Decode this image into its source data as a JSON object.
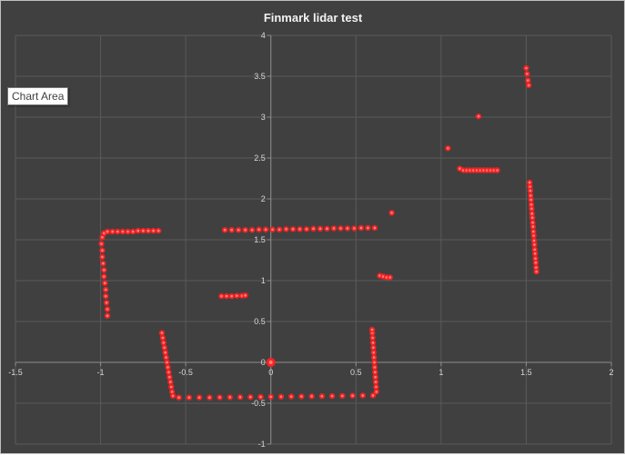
{
  "chart_data": {
    "type": "scatter",
    "title": "Finmark lidar test",
    "xlabel": "",
    "ylabel": "",
    "xlim": [
      -1.5,
      2
    ],
    "ylim": [
      -1,
      4
    ],
    "x_ticks": [
      "-1.5",
      "-1",
      "-0.5",
      "0",
      "0.5",
      "1",
      "1.5",
      "2"
    ],
    "y_ticks": [
      "-1",
      "-0.5",
      "0",
      "0.5",
      "1",
      "1.5",
      "2",
      "2.5",
      "3",
      "3.5",
      "4"
    ],
    "grid": true,
    "legend": "none",
    "series": [
      {
        "color": "#ff2020",
        "points": [
          [
            -0.96,
            0.57
          ],
          [
            -0.96,
            0.65
          ],
          [
            -0.965,
            0.73
          ],
          [
            -0.97,
            0.81
          ],
          [
            -0.97,
            0.89
          ],
          [
            -0.975,
            0.97
          ],
          [
            -0.98,
            1.05
          ],
          [
            -0.98,
            1.13
          ],
          [
            -0.985,
            1.21
          ],
          [
            -0.99,
            1.29
          ],
          [
            -0.99,
            1.37
          ],
          [
            -0.995,
            1.45
          ],
          [
            -0.99,
            1.53
          ],
          [
            -0.98,
            1.58
          ],
          [
            -0.96,
            1.6
          ],
          [
            -0.93,
            1.6
          ],
          [
            -0.9,
            1.6
          ],
          [
            -0.87,
            1.6
          ],
          [
            -0.84,
            1.6
          ],
          [
            -0.81,
            1.6
          ],
          [
            -0.78,
            1.61
          ],
          [
            -0.75,
            1.61
          ],
          [
            -0.72,
            1.61
          ],
          [
            -0.69,
            1.61
          ],
          [
            -0.66,
            1.61
          ],
          [
            -0.64,
            0.36
          ],
          [
            -0.635,
            0.3
          ],
          [
            -0.63,
            0.24
          ],
          [
            -0.625,
            0.18
          ],
          [
            -0.62,
            0.12
          ],
          [
            -0.615,
            0.06
          ],
          [
            -0.61,
            0.0
          ],
          [
            -0.605,
            -0.06
          ],
          [
            -0.6,
            -0.12
          ],
          [
            -0.595,
            -0.18
          ],
          [
            -0.59,
            -0.24
          ],
          [
            -0.585,
            -0.3
          ],
          [
            -0.58,
            -0.36
          ],
          [
            -0.575,
            -0.41
          ],
          [
            -0.54,
            -0.43
          ],
          [
            -0.48,
            -0.43
          ],
          [
            -0.42,
            -0.43
          ],
          [
            -0.36,
            -0.43
          ],
          [
            -0.3,
            -0.428
          ],
          [
            -0.24,
            -0.427
          ],
          [
            -0.18,
            -0.425
          ],
          [
            -0.12,
            -0.424
          ],
          [
            -0.06,
            -0.423
          ],
          [
            0.0,
            -0.421
          ],
          [
            0.06,
            -0.42
          ],
          [
            0.12,
            -0.418
          ],
          [
            0.18,
            -0.417
          ],
          [
            0.24,
            -0.415
          ],
          [
            0.3,
            -0.414
          ],
          [
            0.36,
            -0.412
          ],
          [
            0.42,
            -0.41
          ],
          [
            0.48,
            -0.408
          ],
          [
            0.54,
            -0.406
          ],
          [
            0.6,
            -0.405
          ],
          [
            0.62,
            -0.36
          ],
          [
            0.618,
            -0.3
          ],
          [
            0.616,
            -0.24
          ],
          [
            0.614,
            -0.18
          ],
          [
            0.612,
            -0.12
          ],
          [
            0.61,
            -0.06
          ],
          [
            0.608,
            0.0
          ],
          [
            0.606,
            0.06
          ],
          [
            0.604,
            0.12
          ],
          [
            0.602,
            0.18
          ],
          [
            0.6,
            0.24
          ],
          [
            0.598,
            0.3
          ],
          [
            0.596,
            0.36
          ],
          [
            0.595,
            0.4
          ],
          [
            -0.27,
            1.62
          ],
          [
            -0.23,
            1.62
          ],
          [
            -0.19,
            1.62
          ],
          [
            -0.15,
            1.62
          ],
          [
            -0.11,
            1.62
          ],
          [
            -0.07,
            1.625
          ],
          [
            -0.03,
            1.625
          ],
          [
            0.01,
            1.625
          ],
          [
            0.05,
            1.625
          ],
          [
            0.09,
            1.63
          ],
          [
            0.13,
            1.63
          ],
          [
            0.17,
            1.63
          ],
          [
            0.21,
            1.63
          ],
          [
            0.25,
            1.635
          ],
          [
            0.29,
            1.635
          ],
          [
            0.33,
            1.635
          ],
          [
            0.37,
            1.64
          ],
          [
            0.41,
            1.64
          ],
          [
            0.45,
            1.64
          ],
          [
            0.49,
            1.64
          ],
          [
            0.53,
            1.645
          ],
          [
            0.57,
            1.645
          ],
          [
            0.61,
            1.645
          ],
          [
            -0.29,
            0.81
          ],
          [
            -0.26,
            0.81
          ],
          [
            -0.23,
            0.81
          ],
          [
            -0.2,
            0.815
          ],
          [
            -0.17,
            0.815
          ],
          [
            -0.15,
            0.82
          ],
          [
            0.64,
            1.06
          ],
          [
            0.66,
            1.05
          ],
          [
            0.68,
            1.04
          ],
          [
            0.7,
            1.04
          ],
          [
            0.71,
            1.83
          ],
          [
            1.04,
            2.62
          ],
          [
            1.22,
            3.01
          ],
          [
            1.11,
            2.37
          ],
          [
            1.13,
            2.35
          ],
          [
            1.15,
            2.35
          ],
          [
            1.17,
            2.35
          ],
          [
            1.19,
            2.35
          ],
          [
            1.21,
            2.35
          ],
          [
            1.23,
            2.35
          ],
          [
            1.25,
            2.35
          ],
          [
            1.27,
            2.35
          ],
          [
            1.29,
            2.35
          ],
          [
            1.31,
            2.35
          ],
          [
            1.33,
            2.35
          ],
          [
            1.5,
            3.6
          ],
          [
            1.505,
            3.53
          ],
          [
            1.51,
            3.45
          ],
          [
            1.515,
            3.39
          ],
          [
            1.52,
            2.2
          ],
          [
            1.522,
            2.15
          ],
          [
            1.524,
            2.1
          ],
          [
            1.526,
            2.04
          ],
          [
            1.528,
            1.99
          ],
          [
            1.53,
            1.93
          ],
          [
            1.532,
            1.88
          ],
          [
            1.534,
            1.82
          ],
          [
            1.536,
            1.77
          ],
          [
            1.538,
            1.71
          ],
          [
            1.54,
            1.66
          ],
          [
            1.542,
            1.6
          ],
          [
            1.544,
            1.55
          ],
          [
            1.546,
            1.49
          ],
          [
            1.548,
            1.44
          ],
          [
            1.55,
            1.38
          ],
          [
            1.552,
            1.33
          ],
          [
            1.554,
            1.27
          ],
          [
            1.556,
            1.22
          ],
          [
            1.558,
            1.16
          ],
          [
            1.56,
            1.11
          ]
        ]
      }
    ],
    "highlight_point": [
      0.0,
      0.0
    ]
  },
  "tooltip": "Chart Area",
  "colors": {
    "background": "#404040",
    "grid": "#5a5a5a",
    "axis": "#8c8c8c",
    "text": "#d9d9d9",
    "title": "#f2f2f2",
    "marker": "#ff2020",
    "marker_core": "#ff8080"
  }
}
